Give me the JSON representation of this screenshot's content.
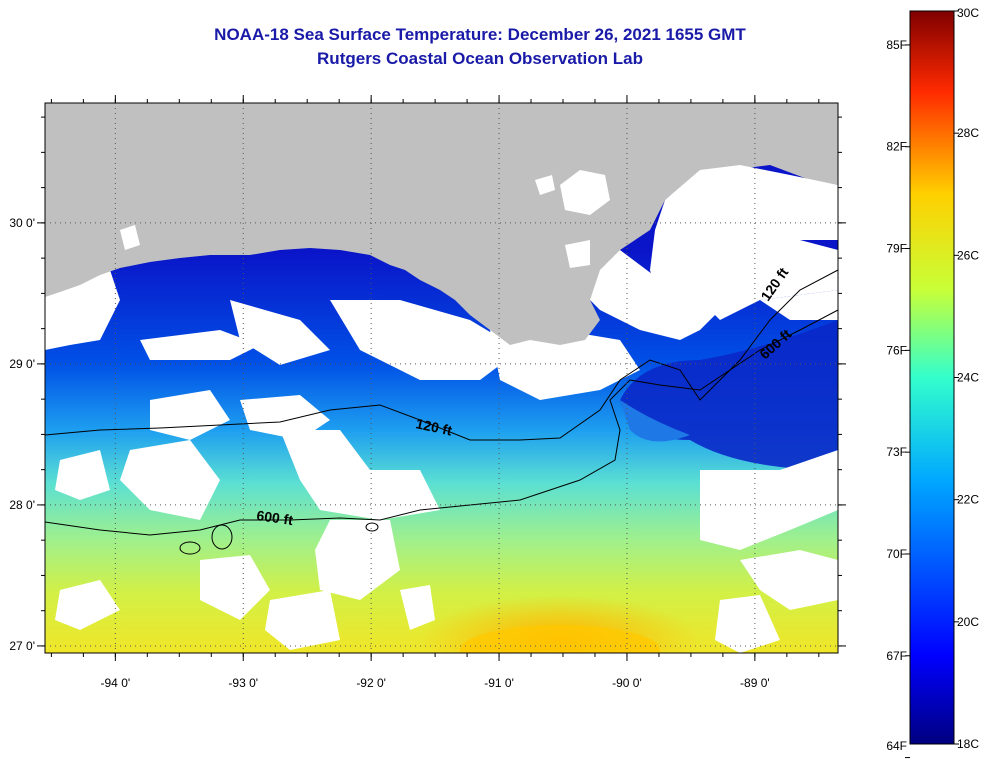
{
  "header": {
    "title": "NOAA-18 Sea Surface Temperature:  December 26, 2021 1655 GMT",
    "subtitle": "Rutgers Coastal Ocean Observation Lab"
  },
  "map": {
    "lat_labels": [
      "30 0'",
      "29 0'",
      "28 0'",
      "27 0'"
    ],
    "lon_labels": [
      "-94 0'",
      "-93 0'",
      "-92 0'",
      "-91 0'",
      "-90 0'",
      "-89 0'"
    ],
    "lat_range": [
      26.95,
      30.85
    ],
    "lon_range": [
      -94.55,
      -88.35
    ],
    "contour_labels": {
      "c120_west": "120 ft",
      "c120_east": "120 ft",
      "c600_west": "600 ft",
      "c600_east": "600 ft"
    },
    "colors": {
      "land": "#c0c0c0",
      "cloud": "#ffffff",
      "contour": "#000000"
    }
  },
  "colorbar": {
    "fahrenheit_labels": [
      "85F",
      "82F",
      "79F",
      "76F",
      "73F",
      "70F",
      "67F",
      "64F"
    ],
    "celsius_labels": [
      "30C",
      "28C",
      "26C",
      "24C",
      "22C",
      "20C",
      "18C"
    ],
    "range_c": [
      18,
      30
    ],
    "colormap": "jet"
  }
}
